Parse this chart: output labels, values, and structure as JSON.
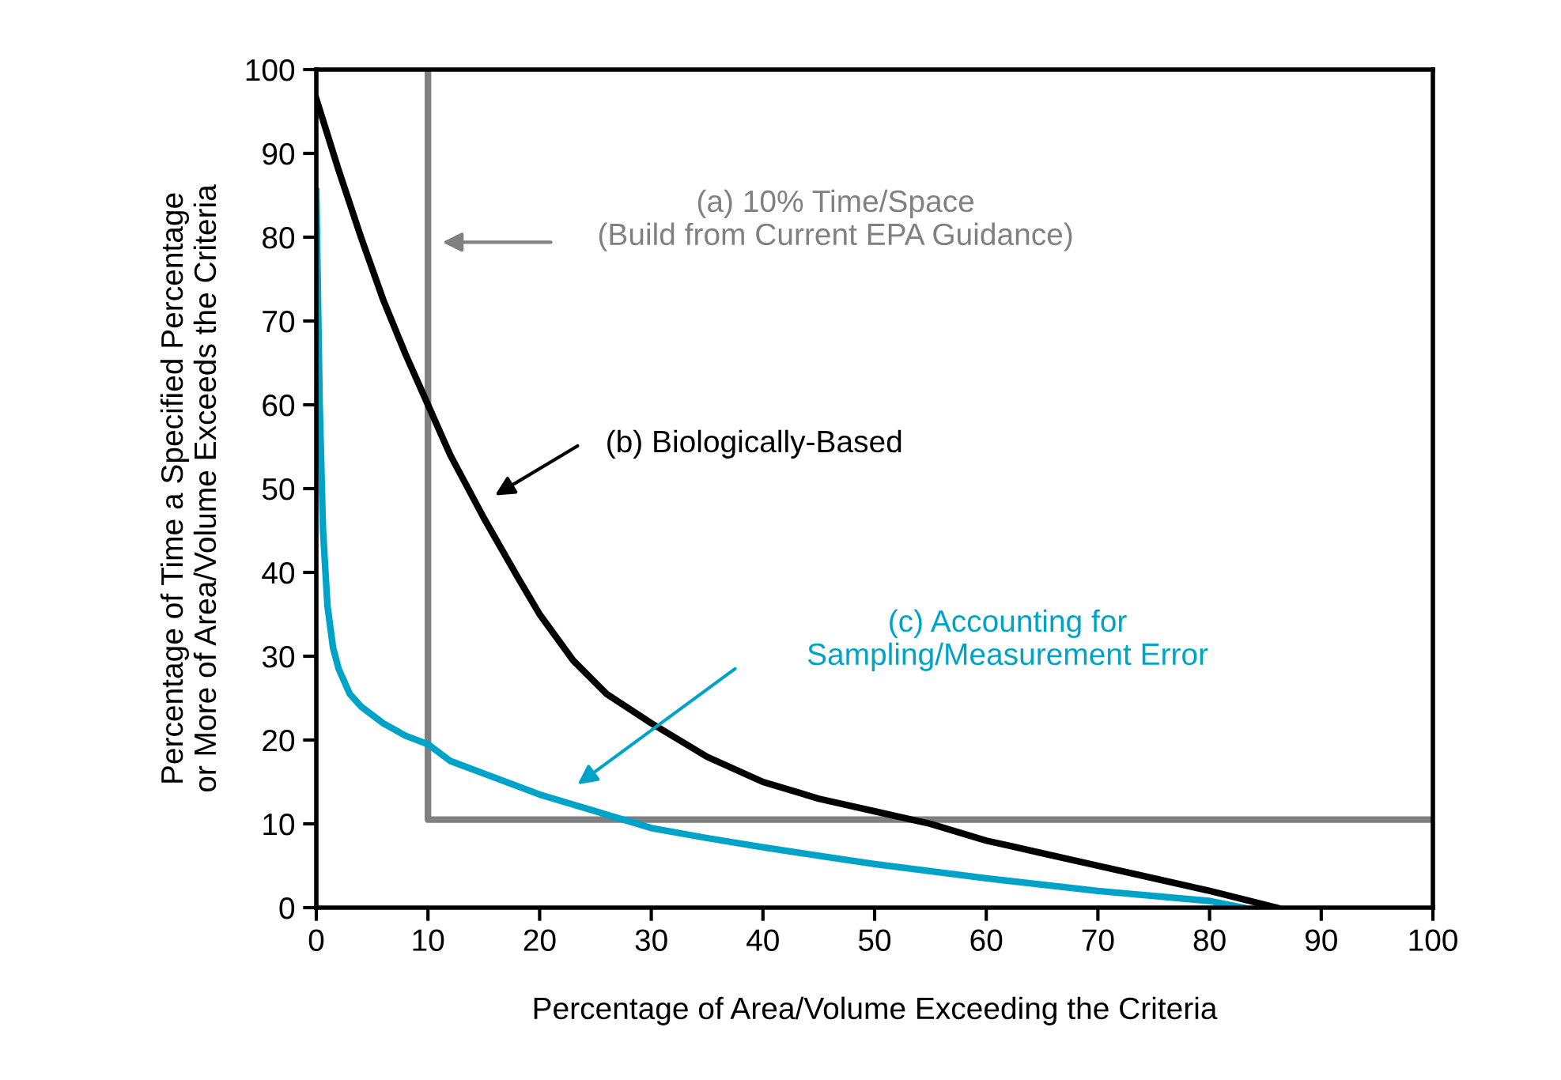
{
  "chart_data": {
    "type": "line",
    "xlabel": "Percentage of Area/Volume Exceeding the Criteria",
    "ylabel": "Percentage of Time a Specified Percentage\nor More of Area/Volume Exceeds the Criteria",
    "xlim": [
      0,
      100
    ],
    "ylim": [
      0,
      100
    ],
    "xticks": [
      0,
      10,
      20,
      30,
      40,
      50,
      60,
      70,
      80,
      90,
      100
    ],
    "yticks": [
      0,
      10,
      20,
      30,
      40,
      50,
      60,
      70,
      80,
      90,
      100
    ],
    "grid": false,
    "legend": false,
    "marker": "none",
    "line_style": "solid",
    "series": [
      {
        "color": "#808080",
        "x": [
          10,
          10,
          100
        ],
        "values": [
          100,
          10.5,
          10.5
        ]
      },
      {
        "color": "#000000",
        "x": [
          0,
          2,
          4,
          6,
          8,
          10,
          12,
          15,
          18,
          20,
          23,
          26,
          30,
          35,
          40,
          45,
          50,
          55,
          60,
          65,
          70,
          75,
          80,
          86
        ],
        "values": [
          96.5,
          88,
          80,
          72.5,
          66,
          60,
          54,
          46.5,
          39.5,
          35,
          29.5,
          25.5,
          22,
          18,
          15,
          13,
          11.5,
          10,
          8,
          6.5,
          5,
          3.5,
          2,
          0
        ]
      },
      {
        "color": "#00a3c8",
        "x": [
          0,
          0.3,
          0.6,
          1,
          1.5,
          2,
          3,
          4,
          6,
          8,
          10,
          12,
          15,
          20,
          25,
          30,
          35,
          40,
          45,
          50,
          60,
          70,
          80,
          83
        ],
        "values": [
          85.5,
          60,
          45,
          36,
          31,
          28.5,
          25.5,
          24,
          22,
          20.5,
          19.5,
          17.5,
          16,
          13.5,
          11.5,
          9.5,
          8.3,
          7.2,
          6.2,
          5.2,
          3.5,
          2,
          0.8,
          0
        ]
      }
    ],
    "annotations": [
      "(a) 10% Time/Space\n(Build from Current EPA Guidance)",
      "(b) Biologically-Based",
      "(c) Accounting for\nSampling/Measurement Error"
    ]
  }
}
